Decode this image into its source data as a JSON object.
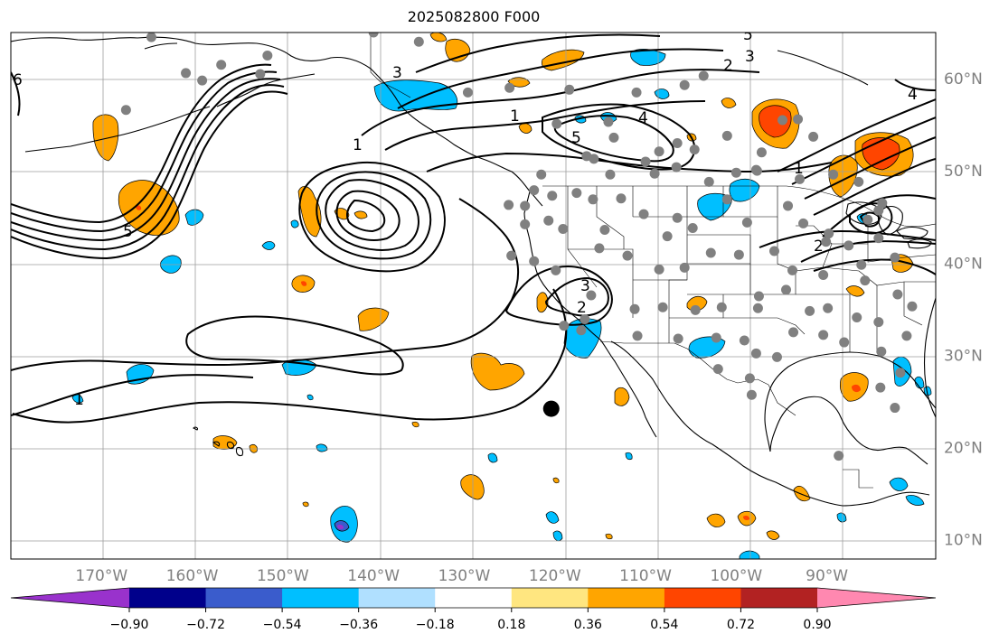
{
  "title": "2025082800 F000",
  "map": {
    "projection": "Plate carree",
    "lon_range": [
      -180,
      -78
    ],
    "lat_range": [
      7.9,
      65
    ],
    "lat_ticks": [
      {
        "value": 10,
        "label": "10°N"
      },
      {
        "value": 20,
        "label": "20°N"
      },
      {
        "value": 30,
        "label": "30°N"
      },
      {
        "value": 40,
        "label": "40°N"
      },
      {
        "value": 50,
        "label": "50°N"
      },
      {
        "value": 60,
        "label": "60°N"
      }
    ],
    "lon_ticks": [
      {
        "value": -170,
        "label": "170°W"
      },
      {
        "value": -160,
        "label": "160°W"
      },
      {
        "value": -150,
        "label": "150°W"
      },
      {
        "value": -140,
        "label": "140°W"
      },
      {
        "value": -130,
        "label": "130°W"
      },
      {
        "value": -120,
        "label": "120°W"
      },
      {
        "value": -110,
        "label": "110°W"
      },
      {
        "value": -100,
        "label": "100°W"
      },
      {
        "value": -90,
        "label": "90°W"
      }
    ],
    "grid": true,
    "marker": {
      "lon": -120.4,
      "lat": 24.2
    }
  },
  "colorbar": {
    "boundaries": [
      -0.9,
      -0.72,
      -0.54,
      -0.36,
      -0.18,
      0.18,
      0.36,
      0.54,
      0.72,
      0.9
    ],
    "tick_labels": [
      "−0.90",
      "−0.72",
      "−0.54",
      "−0.36",
      "−0.18",
      "0.18",
      "0.36",
      "0.54",
      "0.72",
      "0.90"
    ],
    "under_color": "#9932cc",
    "colors": [
      "#00008b",
      "#3a5ccc",
      "#00bfff",
      "#b0e0ff",
      "#ffffff",
      "#ffe680",
      "#ffa500",
      "#ff4500",
      "#b22222"
    ],
    "over_color": "#ff88b0",
    "extend": "both"
  },
  "contour_labels": [
    "2",
    "3",
    "4",
    "5",
    "6",
    "1",
    "3",
    "2",
    "4",
    "5",
    "1",
    "1",
    "1",
    "3",
    "2",
    "5"
  ],
  "station_points": [
    [
      -164.5,
      64.5
    ],
    [
      -160.7,
      60.6
    ],
    [
      -156.8,
      61.5
    ],
    [
      -151.7,
      62.5
    ],
    [
      -152.5,
      60.5
    ],
    [
      -158.9,
      59.8
    ],
    [
      -167.3,
      56.6
    ],
    [
      -140,
      65
    ],
    [
      -135,
      64
    ],
    [
      -129.6,
      58.5
    ],
    [
      -125,
      59
    ],
    [
      -118.4,
      58.8
    ],
    [
      -111,
      58.5
    ],
    [
      -106.5,
      53
    ],
    [
      -114.1,
      55.3
    ],
    [
      -119.8,
      55.1
    ],
    [
      -115.7,
      51.3
    ],
    [
      -113.5,
      53.6
    ],
    [
      -110,
      51
    ],
    [
      -108.5,
      52.1
    ],
    [
      -106.6,
      50.4
    ],
    [
      -104.6,
      52.3
    ],
    [
      -101,
      53.8
    ],
    [
      -97.2,
      52
    ],
    [
      -94.9,
      55.5
    ],
    [
      -91.5,
      53.7
    ],
    [
      -89.3,
      49.6
    ],
    [
      -86.5,
      48.8
    ],
    [
      -93,
      49.1
    ],
    [
      -97.8,
      50.1
    ],
    [
      -100,
      49.8
    ],
    [
      -103,
      48.8
    ],
    [
      -109,
      49.7
    ],
    [
      -113.9,
      49.6
    ],
    [
      -116.5,
      51.6
    ],
    [
      -121.5,
      49.6
    ],
    [
      -122.3,
      47.9
    ],
    [
      -123.3,
      46.2
    ],
    [
      -120.7,
      44.6
    ],
    [
      -123.3,
      44.2
    ],
    [
      -125.1,
      46.3
    ],
    [
      -122.3,
      40.2
    ],
    [
      -119.9,
      39.2
    ],
    [
      -116,
      36.5
    ],
    [
      -115.1,
      41.6
    ],
    [
      -119.1,
      43.7
    ],
    [
      -114.5,
      43.6
    ],
    [
      -112.7,
      47
    ],
    [
      -110.2,
      45.3
    ],
    [
      -106.5,
      44.9
    ],
    [
      -107.6,
      42.9
    ],
    [
      -104.8,
      43.8
    ],
    [
      -98.8,
      44.4
    ],
    [
      -101,
      46.9
    ],
    [
      -94.3,
      46.2
    ],
    [
      -92.6,
      44.3
    ],
    [
      -89.8,
      43.2
    ],
    [
      -87.6,
      41.9
    ],
    [
      -84.3,
      42.7
    ],
    [
      -82.5,
      40.6
    ],
    [
      -86.2,
      39.8
    ],
    [
      -90.4,
      38.7
    ],
    [
      -93.8,
      39.2
    ],
    [
      -95.8,
      41.3
    ],
    [
      -99.7,
      40.9
    ],
    [
      -102.8,
      41.1
    ],
    [
      -105.7,
      39.5
    ],
    [
      -108.5,
      39.3
    ],
    [
      -112,
      40.8
    ],
    [
      -111.2,
      35
    ],
    [
      -108.1,
      35.2
    ],
    [
      -104.5,
      34.9
    ],
    [
      -101.6,
      35.2
    ],
    [
      -97.5,
      36.4
    ],
    [
      -97.6,
      35.1
    ],
    [
      -94.5,
      37.1
    ],
    [
      -91.9,
      34.8
    ],
    [
      -89.9,
      35.1
    ],
    [
      -86.7,
      34.1
    ],
    [
      -84.3,
      33.6
    ],
    [
      -88.1,
      31.4
    ],
    [
      -90.4,
      32.2
    ],
    [
      -93.7,
      32.5
    ],
    [
      -95.5,
      29.8
    ],
    [
      -97.8,
      30.2
    ],
    [
      -99.1,
      31.6
    ],
    [
      -102.2,
      31.9
    ],
    [
      -106.4,
      31.8
    ],
    [
      -110.9,
      32.1
    ],
    [
      -116.7,
      33.9
    ],
    [
      -119,
      33.2
    ],
    [
      -117.1,
      32.7
    ],
    [
      -124.8,
      40.8
    ],
    [
      -117.6,
      47.6
    ],
    [
      -115.8,
      46.9
    ],
    [
      -120.3,
      47.3
    ],
    [
      -102,
      28.5
    ],
    [
      -98.5,
      27.5
    ],
    [
      -98.3,
      25.7
    ],
    [
      -84.1,
      26.5
    ],
    [
      -81.9,
      28.1
    ],
    [
      -84,
      30.4
    ],
    [
      -81.2,
      32.1
    ],
    [
      -80.6,
      35.3
    ],
    [
      -82.2,
      36.6
    ],
    [
      -85.8,
      38.1
    ],
    [
      -90.1,
      42.3
    ],
    [
      -83.9,
      46.5
    ],
    [
      -85.5,
      44.7
    ],
    [
      -84.3,
      45.7
    ],
    [
      -82.5,
      24.3
    ],
    [
      -88.7,
      19.1
    ],
    [
      -93.2,
      55.6
    ],
    [
      -105.7,
      59.3
    ],
    [
      -97.7,
      50
    ],
    [
      -103.6,
      60.3
    ]
  ]
}
